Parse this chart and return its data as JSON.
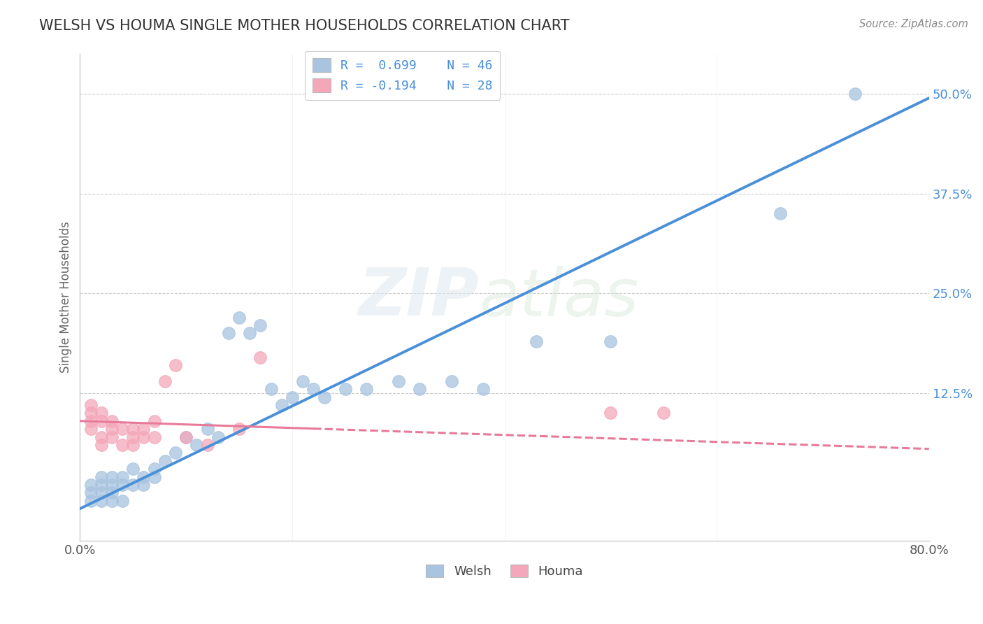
{
  "title": "WELSH VS HOUMA SINGLE MOTHER HOUSEHOLDS CORRELATION CHART",
  "source": "Source: ZipAtlas.com",
  "ylabel": "Single Mother Households",
  "xlim": [
    0.0,
    0.8
  ],
  "ylim": [
    -0.06,
    0.55
  ],
  "yticks": [
    0.0,
    0.125,
    0.25,
    0.375,
    0.5
  ],
  "ytick_labels": [
    "",
    "12.5%",
    "25.0%",
    "37.5%",
    "50.0%"
  ],
  "xticks": [
    0.0,
    0.8
  ],
  "xtick_labels": [
    "0.0%",
    "80.0%"
  ],
  "welsh_color": "#a8c4e0",
  "houma_color": "#f4a7b9",
  "welsh_line_color": "#4a90d9",
  "houma_line_color": "#e87a99",
  "legend_welsh_label": "R =  0.699    N = 46",
  "legend_houma_label": "R = -0.194    N = 28",
  "background_color": "#ffffff",
  "welsh_line_x": [
    0.0,
    0.8
  ],
  "welsh_line_y": [
    -0.02,
    0.495
  ],
  "houma_line_x": [
    0.0,
    0.8
  ],
  "houma_line_y": [
    0.09,
    0.055
  ],
  "grid_color": "#cccccc",
  "title_color": "#333333",
  "welsh_scatter_x": [
    0.01,
    0.01,
    0.01,
    0.02,
    0.02,
    0.02,
    0.02,
    0.03,
    0.03,
    0.03,
    0.03,
    0.04,
    0.04,
    0.04,
    0.05,
    0.05,
    0.06,
    0.06,
    0.07,
    0.07,
    0.08,
    0.09,
    0.1,
    0.11,
    0.12,
    0.13,
    0.14,
    0.15,
    0.16,
    0.17,
    0.18,
    0.19,
    0.2,
    0.21,
    0.22,
    0.23,
    0.25,
    0.27,
    0.3,
    0.32,
    0.35,
    0.38,
    0.43,
    0.5,
    0.66,
    0.73
  ],
  "welsh_scatter_y": [
    0.0,
    -0.01,
    0.01,
    0.0,
    0.01,
    -0.01,
    0.02,
    0.01,
    0.02,
    0.0,
    -0.01,
    0.02,
    0.01,
    -0.01,
    0.03,
    0.01,
    0.02,
    0.01,
    0.03,
    0.02,
    0.04,
    0.05,
    0.07,
    0.06,
    0.08,
    0.07,
    0.2,
    0.22,
    0.2,
    0.21,
    0.13,
    0.11,
    0.12,
    0.14,
    0.13,
    0.12,
    0.13,
    0.13,
    0.14,
    0.13,
    0.14,
    0.13,
    0.19,
    0.19,
    0.35,
    0.5
  ],
  "houma_scatter_x": [
    0.01,
    0.01,
    0.01,
    0.01,
    0.02,
    0.02,
    0.02,
    0.02,
    0.03,
    0.03,
    0.03,
    0.04,
    0.04,
    0.05,
    0.05,
    0.05,
    0.06,
    0.06,
    0.07,
    0.07,
    0.08,
    0.09,
    0.1,
    0.12,
    0.15,
    0.17,
    0.5,
    0.55
  ],
  "houma_scatter_y": [
    0.1,
    0.09,
    0.08,
    0.11,
    0.1,
    0.09,
    0.07,
    0.06,
    0.08,
    0.09,
    0.07,
    0.08,
    0.06,
    0.08,
    0.07,
    0.06,
    0.08,
    0.07,
    0.09,
    0.07,
    0.14,
    0.16,
    0.07,
    0.06,
    0.08,
    0.17,
    0.1,
    0.1
  ]
}
